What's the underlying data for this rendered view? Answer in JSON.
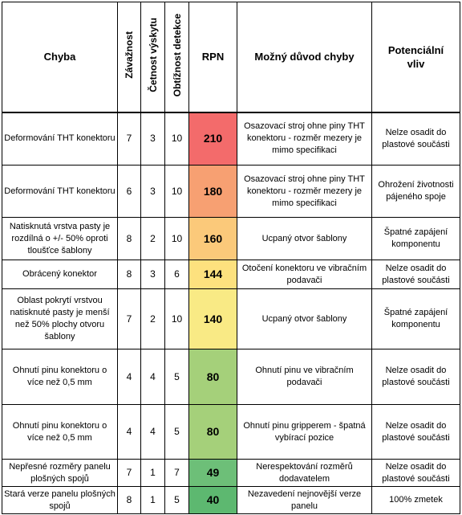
{
  "headers": {
    "defect": "Chyba",
    "severity": "Závažnost",
    "occurrence": "Četnost výskytu",
    "detection": "Obtížnost detekce",
    "rpn": "RPN",
    "cause": "Možný důvod chyby",
    "effect": "Potenciální vliv"
  },
  "rows": [
    {
      "defect": "Deformování THT konektoru",
      "s": "7",
      "o": "3",
      "d": "10",
      "rpn": "210",
      "cause": "Osazovací stroj ohne piny THT konektoru - rozměr mezery je mimo specifikaci",
      "effect": "Nelze osadit do plastové součásti",
      "color": "#f36b6b"
    },
    {
      "defect": "Deformování THT konektoru",
      "s": "6",
      "o": "3",
      "d": "10",
      "rpn": "180",
      "cause": "Osazovací stroj ohne piny THT konektoru - rozměr mezery je mimo specifikaci",
      "effect": "Ohrožení životnosti pájeného spoje",
      "color": "#f7a072"
    },
    {
      "defect": "Natisknutá vrstva pasty je rozdílná o +/- 50% oproti tloušťce šablony",
      "s": "8",
      "o": "2",
      "d": "10",
      "rpn": "160",
      "cause": "Ucpaný otvor šablony",
      "effect": "Špatné zapájení komponentu",
      "color": "#fbc97a"
    },
    {
      "defect": "Obrácený konektor",
      "s": "8",
      "o": "3",
      "d": "6",
      "rpn": "144",
      "cause": "Otočení konektoru ve vibračním podavači",
      "effect": "Nelze osadit do plastové součásti",
      "color": "#fde17e"
    },
    {
      "defect": "Oblast pokrytí vrstvou natisknuté pasty je menší než 50% plochy otvoru šablony",
      "s": "7",
      "o": "2",
      "d": "10",
      "rpn": "140",
      "cause": "Ucpaný otvor šablony",
      "effect": "Špatné zapájení komponentu",
      "color": "#f9ea85"
    },
    {
      "defect": "Ohnutí pinu konektoru o více než 0,5 mm",
      "s": "4",
      "o": "4",
      "d": "5",
      "rpn": "80",
      "cause": "Ohnutí pinu ve vibračním podavači",
      "effect": "Nelze osadit do plastové součásti",
      "color": "#a5d07a"
    },
    {
      "defect": "Ohnutí pinu konektoru o více než 0,5 mm",
      "s": "4",
      "o": "4",
      "d": "5",
      "rpn": "80",
      "cause": "Ohnutí pinu gripperem - špatná vybírací pozice",
      "effect": "Nelze osadit do plastové součásti",
      "color": "#a5d07a"
    },
    {
      "defect": "Nepřesné rozměry panelu plošných spojů",
      "s": "7",
      "o": "1",
      "d": "7",
      "rpn": "49",
      "cause": "Nerespektování rozměrů dodavatelem",
      "effect": "Nelze osadit do plastové součásti",
      "color": "#6dbf78"
    },
    {
      "defect": "Stará verze panelu plošných spojů",
      "s": "8",
      "o": "1",
      "d": "5",
      "rpn": "40",
      "cause": "Nezavedení nejnovější verze panelu",
      "effect": "100% zmetek",
      "color": "#5db870"
    }
  ]
}
